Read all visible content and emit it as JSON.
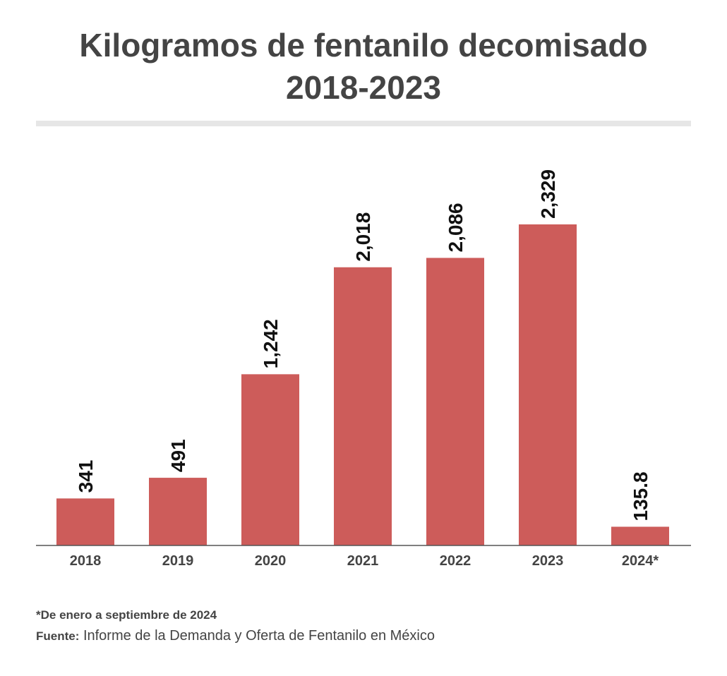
{
  "title_line1": "Kilogramos de fentanilo decomisado",
  "title_line2": "2018-2023",
  "footnote": "*De enero a septiembre de 2024",
  "source_label": "Fuente:",
  "source_text": " Informe de la Demanda y Oferta de Fentanilo en México",
  "colors": {
    "bar": "#cd5c5a",
    "axis": "#555555",
    "rule": "#e6e6e6",
    "text": "#444444"
  },
  "chart_data": {
    "type": "bar",
    "categories": [
      "2018",
      "2019",
      "2020",
      "2021",
      "2022",
      "2023",
      "2024*"
    ],
    "values": [
      341,
      491,
      1242,
      2018,
      2086,
      2329,
      135.8
    ],
    "value_labels": [
      "341",
      "491",
      "1,242",
      "2,018",
      "2,086",
      "2,329",
      "135.8"
    ],
    "title": "Kilogramos de fentanilo decomisado 2018-2023",
    "xlabel": "",
    "ylabel": "",
    "ylim": [
      0,
      2329
    ],
    "grid": false,
    "legend": "none"
  }
}
